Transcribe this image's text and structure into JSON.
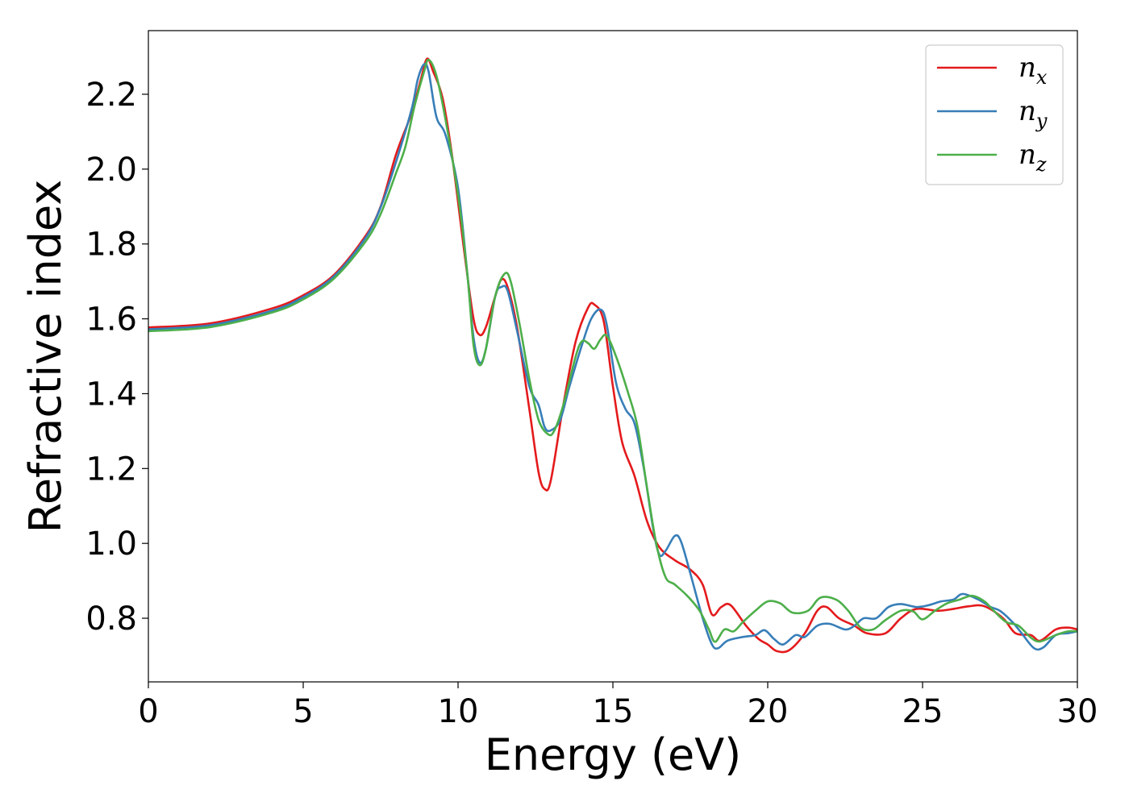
{
  "chart_data": {
    "type": "line",
    "title": "",
    "xlabel": "Energy (eV)",
    "ylabel": "Refractive index",
    "xlim": [
      0,
      30
    ],
    "ylim": [
      0.63,
      2.37
    ],
    "xticks": [
      0,
      5,
      10,
      15,
      20,
      25,
      30
    ],
    "xtick_labels": [
      "0",
      "5",
      "10",
      "15",
      "20",
      "25",
      "30"
    ],
    "yticks": [
      0.8,
      1.0,
      1.2,
      1.4,
      1.6,
      1.8,
      2.0,
      2.2
    ],
    "ytick_labels": [
      "0.8",
      "1.0",
      "1.2",
      "1.4",
      "1.6",
      "1.8",
      "2.0",
      "2.2"
    ],
    "grid": false,
    "legend_position": "top-right",
    "series": [
      {
        "name": "n_x",
        "legend_base": "n",
        "legend_sub": "x",
        "color": "#e41a1c",
        "points": [
          [
            0,
            1.577
          ],
          [
            2,
            1.588
          ],
          [
            4,
            1.628
          ],
          [
            5,
            1.663
          ],
          [
            6,
            1.718
          ],
          [
            7,
            1.82
          ],
          [
            7.5,
            1.9
          ],
          [
            8,
            2.04
          ],
          [
            8.5,
            2.15
          ],
          [
            8.8,
            2.24
          ],
          [
            9.0,
            2.295
          ],
          [
            9.2,
            2.26
          ],
          [
            9.5,
            2.19
          ],
          [
            9.8,
            2.04
          ],
          [
            10.2,
            1.78
          ],
          [
            10.5,
            1.6
          ],
          [
            10.7,
            1.557
          ],
          [
            10.9,
            1.578
          ],
          [
            11.2,
            1.66
          ],
          [
            11.4,
            1.705
          ],
          [
            11.6,
            1.685
          ],
          [
            11.9,
            1.58
          ],
          [
            12.3,
            1.36
          ],
          [
            12.6,
            1.19
          ],
          [
            12.8,
            1.145
          ],
          [
            13.0,
            1.17
          ],
          [
            13.4,
            1.37
          ],
          [
            13.8,
            1.54
          ],
          [
            14.2,
            1.63
          ],
          [
            14.4,
            1.638
          ],
          [
            14.7,
            1.595
          ],
          [
            15.0,
            1.42
          ],
          [
            15.3,
            1.27
          ],
          [
            15.7,
            1.18
          ],
          [
            16.1,
            1.06
          ],
          [
            16.5,
            0.99
          ],
          [
            17.0,
            0.955
          ],
          [
            17.5,
            0.93
          ],
          [
            17.9,
            0.89
          ],
          [
            18.2,
            0.81
          ],
          [
            18.5,
            0.83
          ],
          [
            18.8,
            0.835
          ],
          [
            19.3,
            0.78
          ],
          [
            19.7,
            0.745
          ],
          [
            20.0,
            0.73
          ],
          [
            20.3,
            0.712
          ],
          [
            20.7,
            0.715
          ],
          [
            21.2,
            0.76
          ],
          [
            21.6,
            0.82
          ],
          [
            21.9,
            0.83
          ],
          [
            22.3,
            0.8
          ],
          [
            22.8,
            0.78
          ],
          [
            23.2,
            0.76
          ],
          [
            23.8,
            0.76
          ],
          [
            24.3,
            0.8
          ],
          [
            24.8,
            0.825
          ],
          [
            25.5,
            0.82
          ],
          [
            26.0,
            0.825
          ],
          [
            26.5,
            0.832
          ],
          [
            27.0,
            0.832
          ],
          [
            27.6,
            0.8
          ],
          [
            28.0,
            0.76
          ],
          [
            28.5,
            0.755
          ],
          [
            28.8,
            0.74
          ],
          [
            29.3,
            0.77
          ],
          [
            29.7,
            0.775
          ],
          [
            30,
            0.77
          ]
        ]
      },
      {
        "name": "n_y",
        "legend_base": "n",
        "legend_sub": "y",
        "color": "#377eb8",
        "points": [
          [
            0,
            1.572
          ],
          [
            2,
            1.583
          ],
          [
            4,
            1.622
          ],
          [
            5,
            1.658
          ],
          [
            6,
            1.714
          ],
          [
            7,
            1.815
          ],
          [
            7.5,
            1.898
          ],
          [
            8,
            2.02
          ],
          [
            8.5,
            2.16
          ],
          [
            8.7,
            2.24
          ],
          [
            8.9,
            2.28
          ],
          [
            9.05,
            2.26
          ],
          [
            9.3,
            2.14
          ],
          [
            9.6,
            2.09
          ],
          [
            10.0,
            1.95
          ],
          [
            10.3,
            1.72
          ],
          [
            10.5,
            1.55
          ],
          [
            10.7,
            1.483
          ],
          [
            10.9,
            1.52
          ],
          [
            11.2,
            1.66
          ],
          [
            11.4,
            1.685
          ],
          [
            11.6,
            1.675
          ],
          [
            11.9,
            1.57
          ],
          [
            12.3,
            1.42
          ],
          [
            12.6,
            1.37
          ],
          [
            12.8,
            1.31
          ],
          [
            13.0,
            1.302
          ],
          [
            13.3,
            1.33
          ],
          [
            13.6,
            1.42
          ],
          [
            14.0,
            1.53
          ],
          [
            14.3,
            1.6
          ],
          [
            14.6,
            1.625
          ],
          [
            14.8,
            1.585
          ],
          [
            15.1,
            1.43
          ],
          [
            15.4,
            1.36
          ],
          [
            15.7,
            1.32
          ],
          [
            16.0,
            1.2
          ],
          [
            16.3,
            1.04
          ],
          [
            16.5,
            0.97
          ],
          [
            16.7,
            0.98
          ],
          [
            17.0,
            1.02
          ],
          [
            17.2,
            1.005
          ],
          [
            17.5,
            0.92
          ],
          [
            17.9,
            0.8
          ],
          [
            18.2,
            0.73
          ],
          [
            18.4,
            0.72
          ],
          [
            18.7,
            0.74
          ],
          [
            19.2,
            0.75
          ],
          [
            19.6,
            0.755
          ],
          [
            19.9,
            0.768
          ],
          [
            20.2,
            0.745
          ],
          [
            20.5,
            0.73
          ],
          [
            20.9,
            0.755
          ],
          [
            21.2,
            0.75
          ],
          [
            21.6,
            0.78
          ],
          [
            22.0,
            0.785
          ],
          [
            22.5,
            0.77
          ],
          [
            22.8,
            0.78
          ],
          [
            23.1,
            0.8
          ],
          [
            23.5,
            0.8
          ],
          [
            23.9,
            0.83
          ],
          [
            24.3,
            0.838
          ],
          [
            24.8,
            0.83
          ],
          [
            25.2,
            0.835
          ],
          [
            25.6,
            0.845
          ],
          [
            26.0,
            0.85
          ],
          [
            26.3,
            0.865
          ],
          [
            26.8,
            0.85
          ],
          [
            27.2,
            0.83
          ],
          [
            27.5,
            0.82
          ],
          [
            27.9,
            0.79
          ],
          [
            28.2,
            0.76
          ],
          [
            28.6,
            0.72
          ],
          [
            28.9,
            0.722
          ],
          [
            29.3,
            0.755
          ],
          [
            29.7,
            0.76
          ],
          [
            30,
            0.765
          ]
        ]
      },
      {
        "name": "n_z",
        "legend_base": "n",
        "legend_sub": "z",
        "color": "#4daf4a",
        "points": [
          [
            0,
            1.567
          ],
          [
            2,
            1.578
          ],
          [
            4,
            1.617
          ],
          [
            5,
            1.652
          ],
          [
            6,
            1.708
          ],
          [
            7,
            1.805
          ],
          [
            7.5,
            1.88
          ],
          [
            8,
            1.99
          ],
          [
            8.3,
            2.06
          ],
          [
            8.6,
            2.17
          ],
          [
            8.9,
            2.26
          ],
          [
            9.05,
            2.292
          ],
          [
            9.3,
            2.25
          ],
          [
            9.6,
            2.13
          ],
          [
            10.0,
            1.93
          ],
          [
            10.3,
            1.72
          ],
          [
            10.5,
            1.53
          ],
          [
            10.7,
            1.476
          ],
          [
            10.9,
            1.52
          ],
          [
            11.2,
            1.66
          ],
          [
            11.5,
            1.72
          ],
          [
            11.7,
            1.7
          ],
          [
            12.0,
            1.58
          ],
          [
            12.3,
            1.44
          ],
          [
            12.6,
            1.33
          ],
          [
            12.9,
            1.292
          ],
          [
            13.1,
            1.3
          ],
          [
            13.4,
            1.37
          ],
          [
            13.8,
            1.5
          ],
          [
            14.0,
            1.54
          ],
          [
            14.2,
            1.535
          ],
          [
            14.4,
            1.52
          ],
          [
            14.6,
            1.545
          ],
          [
            14.8,
            1.555
          ],
          [
            15.1,
            1.5
          ],
          [
            15.5,
            1.4
          ],
          [
            15.8,
            1.31
          ],
          [
            16.1,
            1.15
          ],
          [
            16.4,
            1.0
          ],
          [
            16.7,
            0.91
          ],
          [
            17.0,
            0.89
          ],
          [
            17.4,
            0.86
          ],
          [
            17.8,
            0.82
          ],
          [
            18.1,
            0.77
          ],
          [
            18.3,
            0.737
          ],
          [
            18.6,
            0.77
          ],
          [
            18.9,
            0.765
          ],
          [
            19.2,
            0.79
          ],
          [
            19.6,
            0.82
          ],
          [
            20.0,
            0.845
          ],
          [
            20.4,
            0.84
          ],
          [
            20.8,
            0.815
          ],
          [
            21.3,
            0.82
          ],
          [
            21.7,
            0.855
          ],
          [
            22.2,
            0.85
          ],
          [
            22.6,
            0.82
          ],
          [
            23.0,
            0.775
          ],
          [
            23.4,
            0.77
          ],
          [
            23.8,
            0.795
          ],
          [
            24.3,
            0.82
          ],
          [
            24.7,
            0.818
          ],
          [
            25.0,
            0.797
          ],
          [
            25.4,
            0.82
          ],
          [
            25.8,
            0.84
          ],
          [
            26.2,
            0.85
          ],
          [
            26.6,
            0.86
          ],
          [
            27.0,
            0.845
          ],
          [
            27.3,
            0.82
          ],
          [
            27.7,
            0.79
          ],
          [
            28.1,
            0.78
          ],
          [
            28.5,
            0.748
          ],
          [
            28.8,
            0.738
          ],
          [
            29.3,
            0.755
          ],
          [
            29.7,
            0.765
          ],
          [
            30,
            0.765
          ]
        ]
      }
    ]
  }
}
